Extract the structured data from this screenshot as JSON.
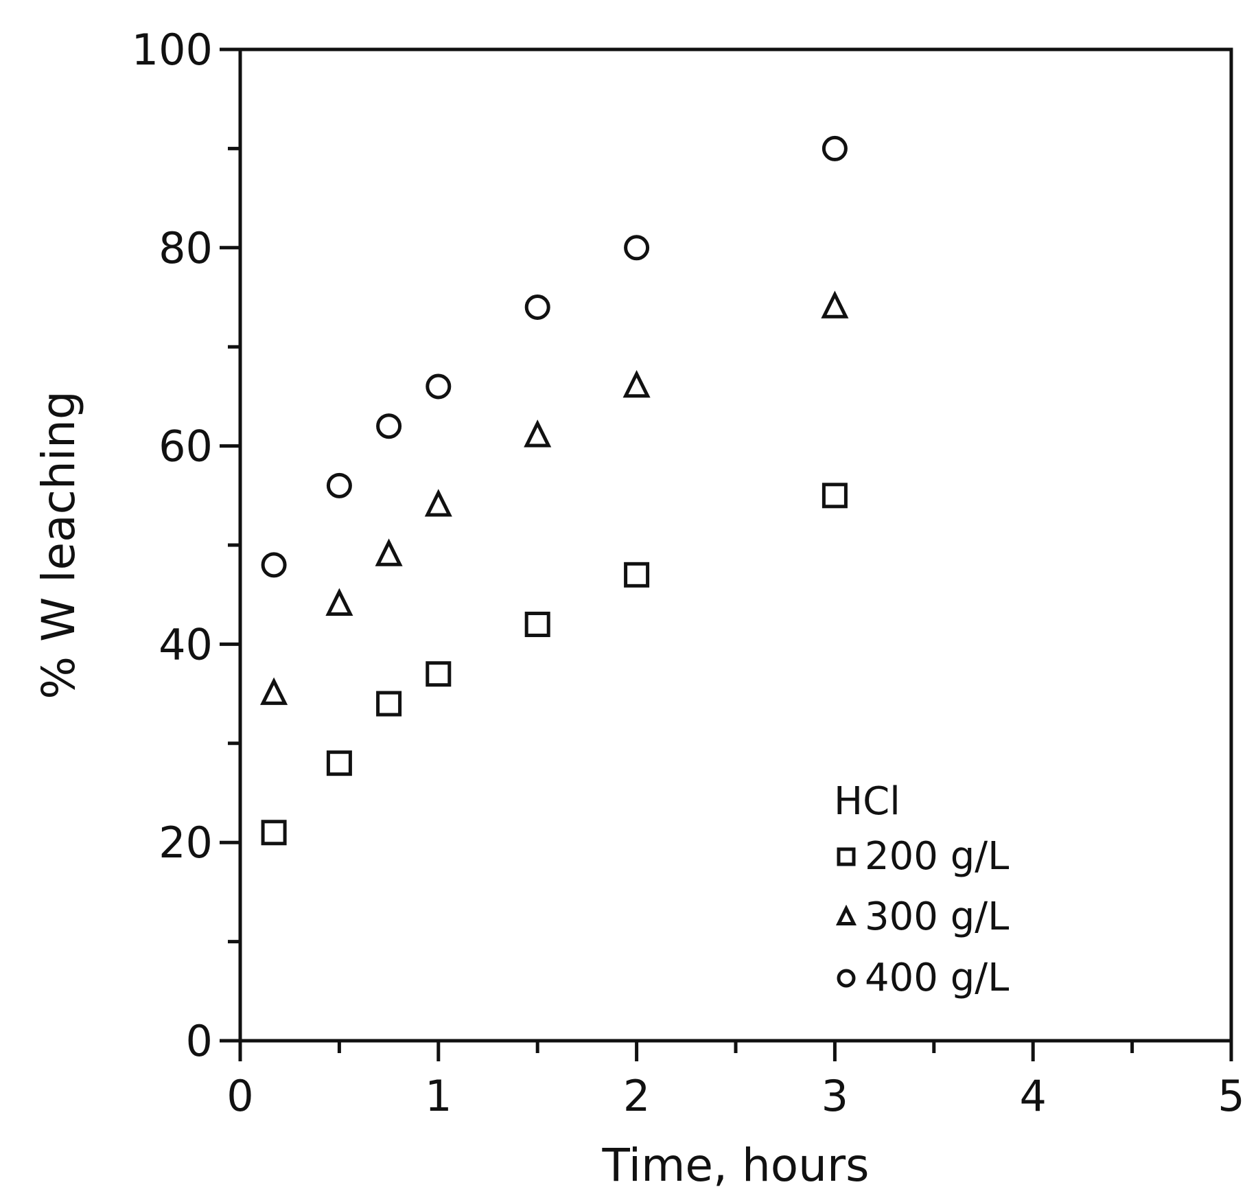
{
  "chart_data": {
    "type": "scatter",
    "title": "",
    "xlabel": "Time, hours",
    "ylabel": "% W leaching",
    "xlim": [
      0,
      5
    ],
    "ylim": [
      0,
      100
    ],
    "x_ticks": [
      "0",
      "1",
      "2",
      "3",
      "4",
      "5"
    ],
    "y_ticks": [
      "0",
      "20",
      "40",
      "60",
      "80",
      "100"
    ],
    "x_minor_step": 0.5,
    "y_minor_step": 10,
    "grid": false,
    "legend": {
      "title": "HCl",
      "placement": "bottom-right",
      "entries": [
        "200 g/L",
        "300 g/L",
        "400 g/L"
      ]
    },
    "series": [
      {
        "name": "200 g/L",
        "marker": "square",
        "x": [
          0.17,
          0.5,
          0.75,
          1.0,
          1.5,
          2.0,
          3.0
        ],
        "y": [
          21,
          28,
          34,
          37,
          42,
          47,
          55
        ]
      },
      {
        "name": "300 g/L",
        "marker": "triangle",
        "x": [
          0.17,
          0.5,
          0.75,
          1.0,
          1.5,
          2.0,
          3.0
        ],
        "y": [
          35,
          44,
          49,
          54,
          61,
          66,
          74
        ]
      },
      {
        "name": "400 g/L",
        "marker": "circle",
        "x": [
          0.17,
          0.5,
          0.75,
          1.0,
          1.5,
          2.0,
          3.0
        ],
        "y": [
          48,
          56,
          62,
          66,
          74,
          80,
          90
        ]
      }
    ]
  }
}
